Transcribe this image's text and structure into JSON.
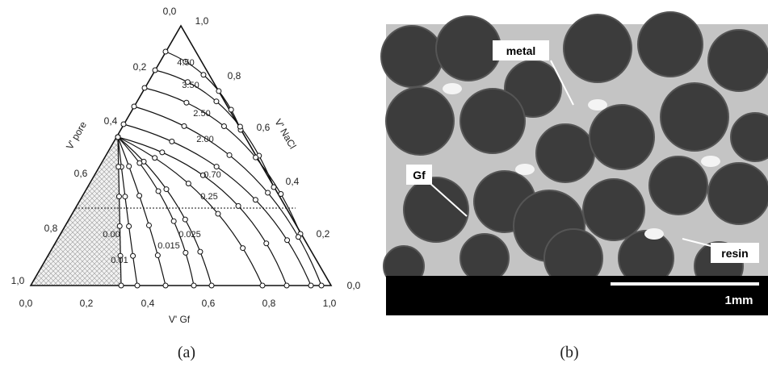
{
  "panel_a": {
    "bottom_ticks": [
      "0,0",
      "0,2",
      "0,4",
      "0,6",
      "0,8",
      "1,0"
    ],
    "left_ticks": [
      "0,0",
      "0,2",
      "0,4",
      "0,6",
      "0,8",
      "1,0"
    ],
    "right_ticks": [
      "1,0",
      "0,8",
      "0,6",
      "0,4",
      "0,2",
      "0,0"
    ],
    "axis_titles": {
      "left": "V' pore",
      "right": "V' NaCl",
      "bottom": "V' Gf"
    },
    "contour_labels": [
      "4.50",
      "3.50",
      "2.50",
      "2.00",
      "0.70",
      "0.25",
      "0.025",
      "0.015",
      "0.01",
      "0.00"
    ],
    "caption": "(a)"
  },
  "panel_b": {
    "labels": [
      "metal",
      "Gf",
      "resin"
    ],
    "scale_bar": "1mm",
    "caption": "(b)"
  }
}
